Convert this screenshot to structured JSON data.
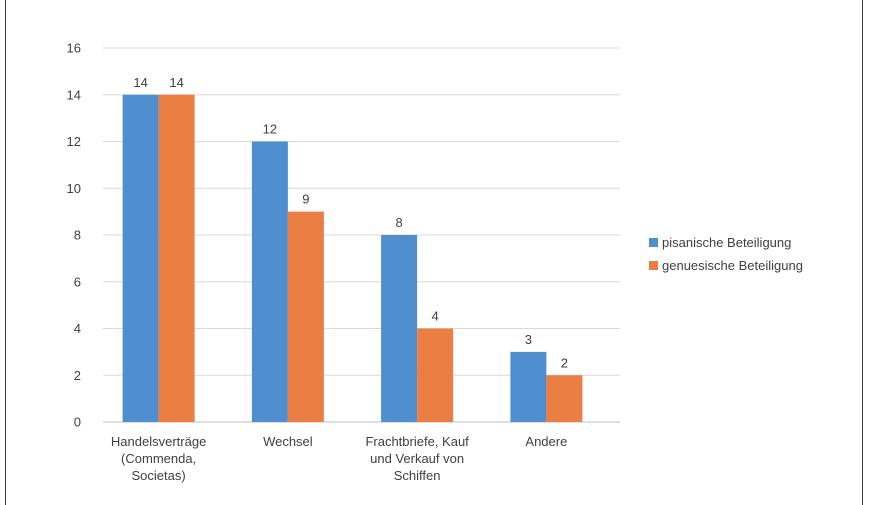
{
  "chart_data": {
    "type": "bar",
    "categories": [
      [
        "Handelsverträge",
        "(Commenda,",
        "Societas)"
      ],
      [
        "Wechsel"
      ],
      [
        "Frachtbriefe, Kauf",
        "und Verkauf von",
        "Schiffen"
      ],
      [
        "Andere"
      ]
    ],
    "series": [
      {
        "name": "pisanische Beteiligung",
        "color": "#4F8FCF",
        "values": [
          14,
          12,
          8,
          3
        ]
      },
      {
        "name": "genuesische Beteiligung",
        "color": "#EB7F43",
        "values": [
          14,
          9,
          4,
          2
        ]
      }
    ],
    "ylim": [
      0,
      16
    ],
    "yticks": [
      "0",
      "2",
      "4",
      "6",
      "8",
      "10",
      "12",
      "14",
      "16"
    ],
    "grid": true,
    "legend_position": "right",
    "data_labels": true
  }
}
